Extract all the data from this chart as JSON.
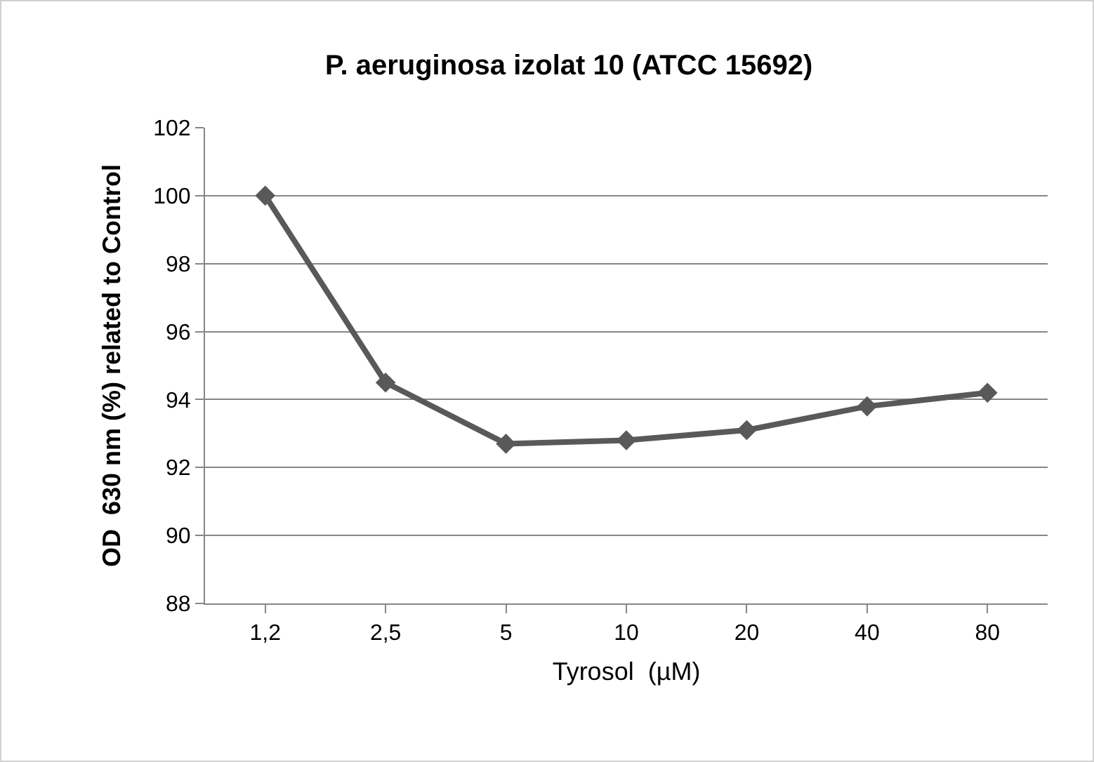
{
  "chart_data": {
    "type": "line",
    "title": "P. aeruginosa izolat 10 (ATCC 15692)",
    "xlabel": "Tyrosol  (µM)",
    "ylabel": "OD  630 nm (%) related to Control",
    "categories": [
      "1,2",
      "2,5",
      "5",
      "10",
      "20",
      "40",
      "80"
    ],
    "series": [
      {
        "color": "#595959",
        "values": [
          100,
          94.5,
          92.7,
          92.8,
          93.1,
          93.8,
          94.2
        ]
      }
    ],
    "ylim": [
      88,
      102
    ],
    "yticks": [
      88,
      90,
      92,
      94,
      96,
      98,
      100,
      102
    ],
    "grid": "y",
    "marker": "diamond",
    "line_style": "solid"
  }
}
